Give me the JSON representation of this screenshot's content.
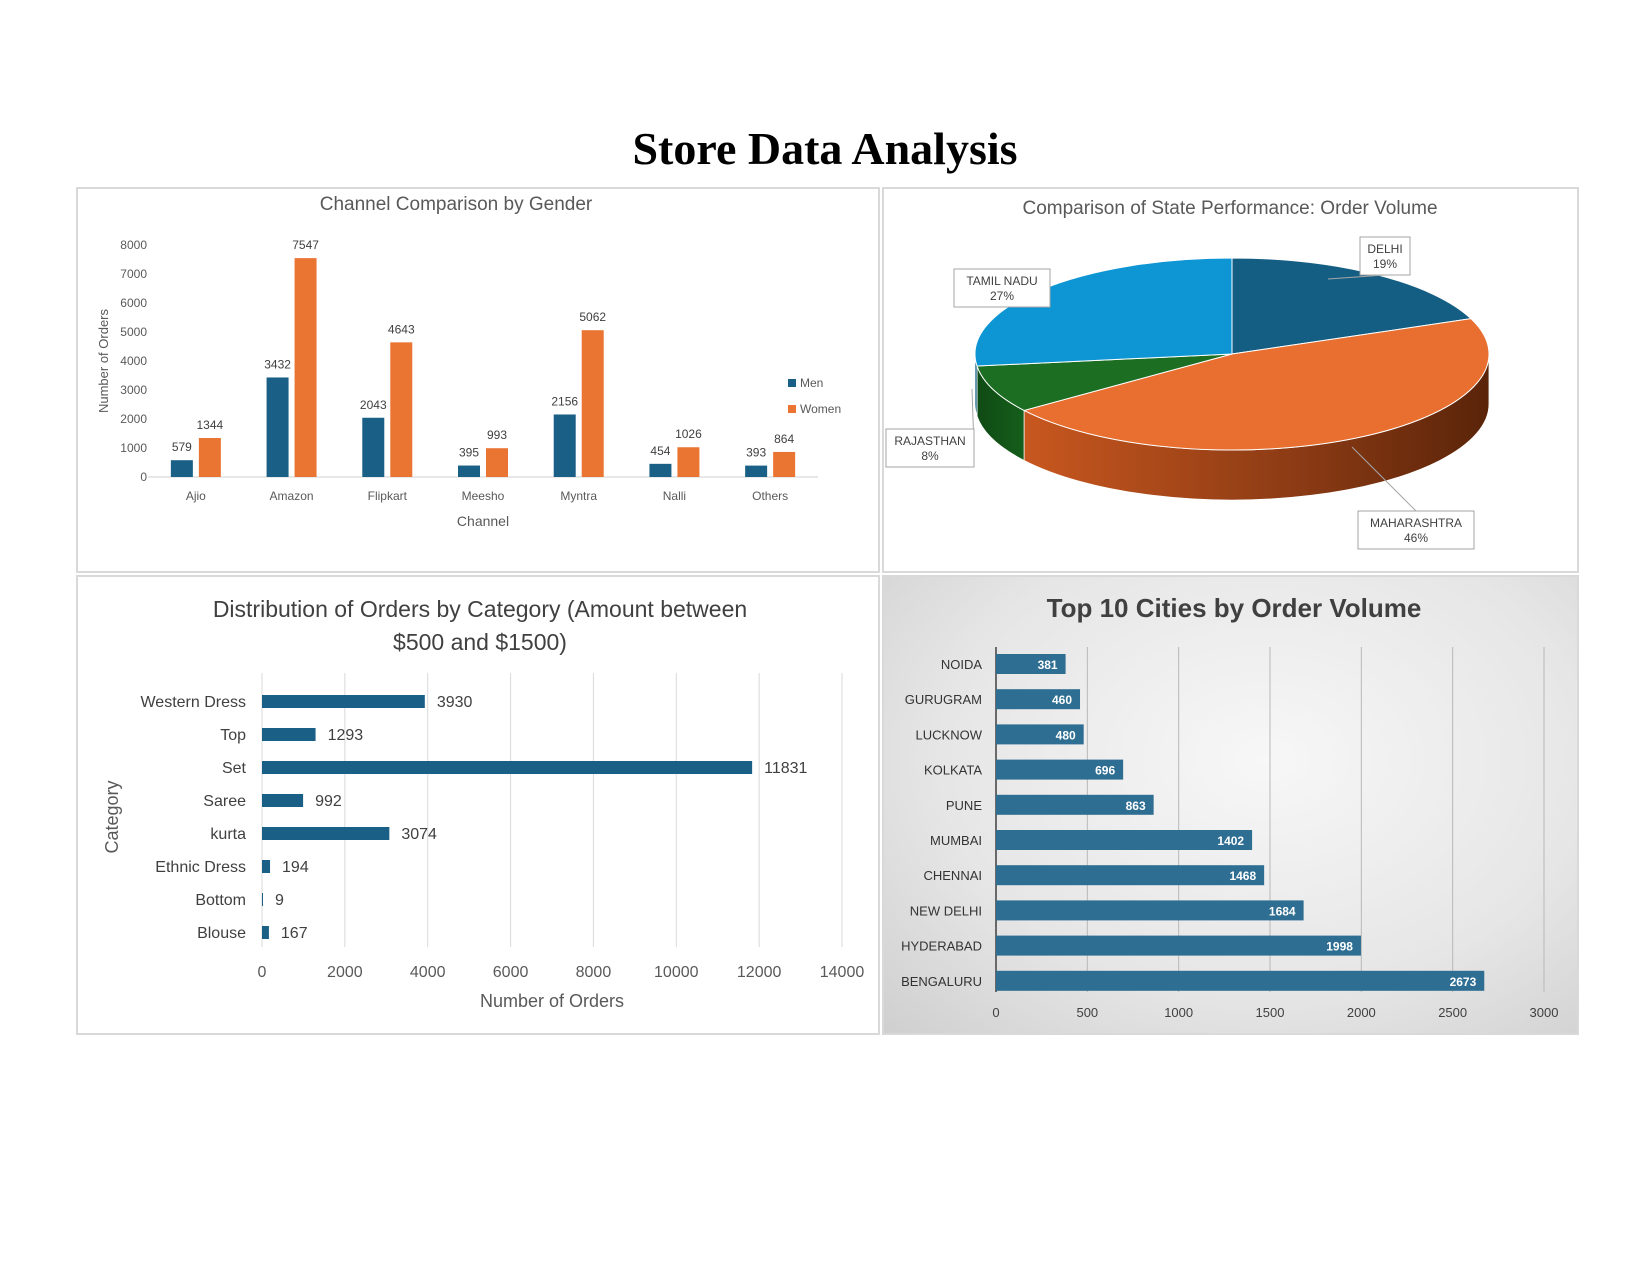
{
  "page": {
    "title": "Store Data Analysis"
  },
  "colors": {
    "men": "#1a5f85",
    "women": "#ea7432",
    "bar_single": "#1a5f85",
    "city_bar": "#2e6e92",
    "pie_delhi": "#155e83",
    "pie_maharashtra": "#e86f2f",
    "pie_rajasthan": "#1c6e23",
    "pie_tamilnadu": "#0e95d4"
  },
  "chart_data": [
    {
      "type": "bar",
      "title": "Channel Comparison by Gender",
      "xlabel": "Channel",
      "ylabel": "Number of Orders",
      "ylim": [
        0,
        8000
      ],
      "yticks": [
        0,
        1000,
        2000,
        3000,
        4000,
        5000,
        6000,
        7000,
        8000
      ],
      "categories": [
        "Ajio",
        "Amazon",
        "Flipkart",
        "Meesho",
        "Myntra",
        "Nalli",
        "Others"
      ],
      "series": [
        {
          "name": "Men",
          "values": [
            579,
            3432,
            2043,
            395,
            2156,
            454,
            393
          ]
        },
        {
          "name": "Women",
          "values": [
            1344,
            7547,
            4643,
            993,
            5062,
            1026,
            864
          ]
        }
      ],
      "legend": "right",
      "grid": false
    },
    {
      "type": "pie",
      "title": "Comparison of State Performance: Order Volume",
      "slices": [
        {
          "label": "DELHI",
          "value": 19,
          "pct_label": "19%"
        },
        {
          "label": "MAHARASHTRA",
          "value": 46,
          "pct_label": "46%"
        },
        {
          "label": "RAJASTHAN",
          "value": 8,
          "pct_label": "8%"
        },
        {
          "label": "TAMIL NADU",
          "value": 27,
          "pct_label": "27%"
        }
      ],
      "style": "3d"
    },
    {
      "type": "bar",
      "orientation": "horizontal",
      "title": "Distribution of Orders by Category (Amount between $500 and $1500)",
      "title_lines": [
        "Distribution of Orders by Category (Amount between",
        "$500 and $1500)"
      ],
      "xlabel": "Number of Orders",
      "ylabel": "Category",
      "xlim": [
        0,
        14000
      ],
      "xticks": [
        0,
        2000,
        4000,
        6000,
        8000,
        10000,
        12000,
        14000
      ],
      "categories": [
        "Western Dress",
        "Top",
        "Set",
        "Saree",
        "kurta",
        "Ethnic Dress",
        "Bottom",
        "Blouse"
      ],
      "values": [
        3930,
        1293,
        11831,
        992,
        3074,
        194,
        9,
        167
      ],
      "grid": true
    },
    {
      "type": "bar",
      "orientation": "horizontal",
      "title": "Top 10 Cities by Order Volume",
      "xlim": [
        0,
        3000
      ],
      "xticks": [
        0,
        500,
        1000,
        1500,
        2000,
        2500,
        3000
      ],
      "categories": [
        "NOIDA",
        "GURUGRAM",
        "LUCKNOW",
        "KOLKATA",
        "PUNE",
        "MUMBAI",
        "CHENNAI",
        "NEW DELHI",
        "HYDERABAD",
        "BENGALURU"
      ],
      "values": [
        381,
        460,
        480,
        696,
        863,
        1402,
        1468,
        1684,
        1998,
        2673
      ],
      "grid": true
    }
  ]
}
